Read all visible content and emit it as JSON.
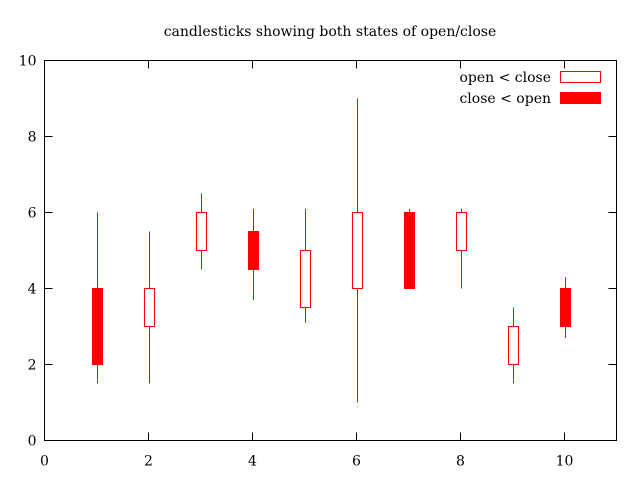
{
  "chart_data": {
    "type": "candlestick",
    "title": "candlesticks showing both states of open/close",
    "xlabel": "",
    "ylabel": "",
    "xlim": [
      0,
      11
    ],
    "ylim": [
      0,
      10
    ],
    "x_ticks": [
      "0",
      "2",
      "4",
      "6",
      "8",
      "10"
    ],
    "y_ticks": [
      "0",
      "2",
      "4",
      "6",
      "8",
      "10"
    ],
    "grid": false,
    "legend_position": "top-right",
    "colors": {
      "candle": "#ff0000",
      "axis": "#000000"
    },
    "legend": [
      {
        "label": "open < close",
        "style": "hollow"
      },
      {
        "label": "close < open",
        "style": "filled"
      }
    ],
    "points": [
      {
        "x": 1,
        "open": 4.0,
        "low": 1.5,
        "high": 6.0,
        "close": 2.0
      },
      {
        "x": 2,
        "open": 3.0,
        "low": 1.5,
        "high": 5.5,
        "close": 4.0
      },
      {
        "x": 3,
        "open": 5.0,
        "low": 4.5,
        "high": 6.5,
        "close": 6.0
      },
      {
        "x": 4,
        "open": 5.5,
        "low": 3.7,
        "high": 6.1,
        "close": 4.5
      },
      {
        "x": 5,
        "open": 3.5,
        "low": 3.1,
        "high": 6.1,
        "close": 5.0
      },
      {
        "x": 6,
        "open": 4.0,
        "low": 1.0,
        "high": 9.0,
        "close": 6.0
      },
      {
        "x": 7,
        "open": 6.0,
        "low": 4.0,
        "high": 6.1,
        "close": 4.0
      },
      {
        "x": 8,
        "open": 5.0,
        "low": 4.0,
        "high": 6.1,
        "close": 6.0
      },
      {
        "x": 9,
        "open": 2.0,
        "low": 1.5,
        "high": 3.5,
        "close": 3.0
      },
      {
        "x": 10,
        "open": 4.0,
        "low": 2.7,
        "high": 4.3,
        "close": 3.0
      }
    ]
  }
}
